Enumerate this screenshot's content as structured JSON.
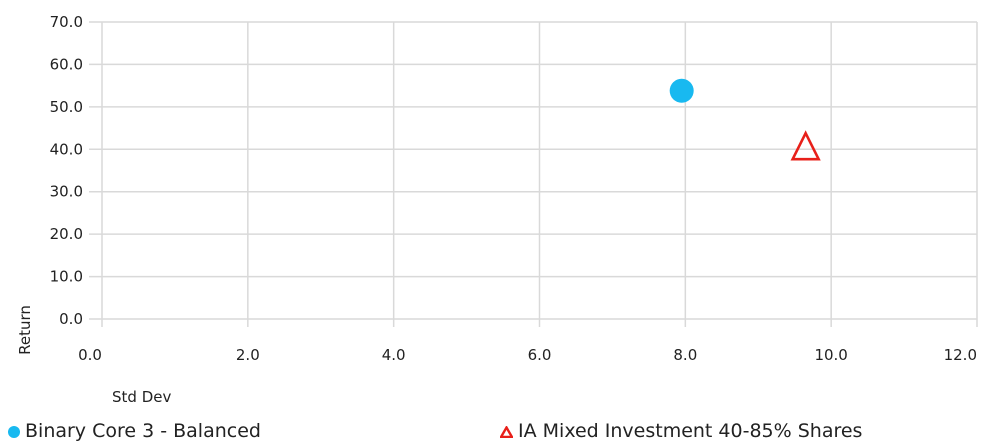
{
  "chart_data": {
    "type": "scatter",
    "xlabel": "Std Dev",
    "ylabel": "Return",
    "xlim": [
      0,
      12
    ],
    "ylim": [
      0,
      70
    ],
    "x_ticks": [
      "0.0",
      "2.0",
      "4.0",
      "6.0",
      "8.0",
      "10.0",
      "12.0"
    ],
    "y_ticks": [
      "0.0",
      "10.0",
      "20.0",
      "30.0",
      "40.0",
      "50.0",
      "60.0",
      "70.0"
    ],
    "grid": true,
    "legend_position": "bottom",
    "series": [
      {
        "name": "Binary Core 3 - Balanced",
        "marker": "circle",
        "color": "#18b9f0",
        "points": [
          {
            "x": 7.95,
            "y": 53.8
          }
        ]
      },
      {
        "name": "IA Mixed Investment 40-85% Shares",
        "marker": "triangle",
        "color": "#e8201a",
        "points": [
          {
            "x": 9.65,
            "y": 40.5
          }
        ]
      }
    ]
  }
}
